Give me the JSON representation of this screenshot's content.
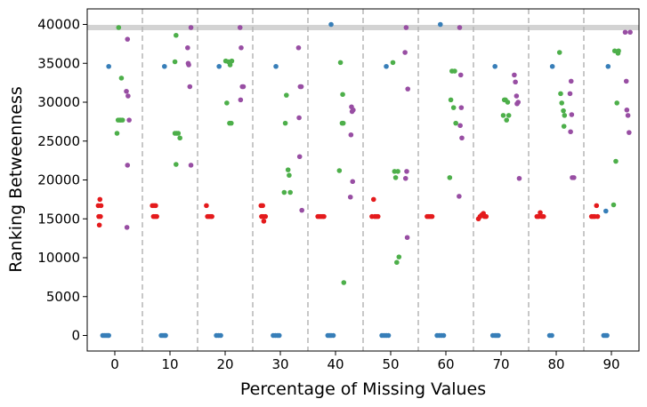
{
  "chart_data": {
    "type": "scatter",
    "title": "",
    "xlabel": "Percentage of Missing Values",
    "ylabel": "Ranking Betweenness",
    "xlim": [
      -5,
      95
    ],
    "ylim": [
      -2000,
      42000
    ],
    "xticks": [
      0,
      10,
      20,
      30,
      40,
      50,
      60,
      70,
      80,
      90
    ],
    "yticks": [
      0,
      5000,
      10000,
      15000,
      20000,
      25000,
      30000,
      35000,
      40000
    ],
    "xtick_labels": [
      "0",
      "10",
      "20",
      "30",
      "40",
      "50",
      "60",
      "70",
      "80",
      "90"
    ],
    "ytick_labels": [
      "0",
      "5000",
      "10000",
      "15000",
      "20000",
      "25000",
      "30000",
      "35000",
      "40000"
    ],
    "reference_line_y": 39600,
    "group_separators_x": [
      5,
      15,
      25,
      35,
      45,
      55,
      65,
      75,
      85
    ],
    "grid": false,
    "series": [
      {
        "name": "blue",
        "color": "#377eb8",
        "points": [
          [
            -2.2,
            0
          ],
          [
            -1.9,
            0
          ],
          [
            -1.6,
            0
          ],
          [
            -1.3,
            0
          ],
          [
            -1.1,
            0
          ],
          [
            -1.1,
            34600
          ],
          [
            8.4,
            0
          ],
          [
            8.7,
            0
          ],
          [
            9.0,
            0
          ],
          [
            9.2,
            0
          ],
          [
            9.0,
            34600
          ],
          [
            18.4,
            0
          ],
          [
            18.8,
            0
          ],
          [
            19.2,
            0
          ],
          [
            18.9,
            34600
          ],
          [
            28.7,
            0
          ],
          [
            29.1,
            0
          ],
          [
            29.5,
            0
          ],
          [
            29.8,
            0
          ],
          [
            29.2,
            34600
          ],
          [
            38.6,
            0
          ],
          [
            38.9,
            0
          ],
          [
            39.2,
            0
          ],
          [
            39.6,
            0
          ],
          [
            39.2,
            40000
          ],
          [
            48.4,
            0
          ],
          [
            48.8,
            0
          ],
          [
            49.2,
            0
          ],
          [
            49.6,
            0
          ],
          [
            49.2,
            34600
          ],
          [
            58.4,
            0
          ],
          [
            58.8,
            0
          ],
          [
            59.2,
            0
          ],
          [
            59.6,
            0
          ],
          [
            59.0,
            40000
          ],
          [
            68.5,
            0
          ],
          [
            68.9,
            0
          ],
          [
            69.2,
            0
          ],
          [
            69.5,
            0
          ],
          [
            68.9,
            34600
          ],
          [
            78.8,
            0
          ],
          [
            79.2,
            0
          ],
          [
            79.3,
            34600
          ],
          [
            88.6,
            0
          ],
          [
            88.9,
            0
          ],
          [
            89.2,
            0
          ],
          [
            89.4,
            34600
          ],
          [
            89.0,
            16000
          ]
        ]
      },
      {
        "name": "red",
        "color": "#e41a1c",
        "points": [
          [
            -3.0,
            16700
          ],
          [
            -2.7,
            17500
          ],
          [
            -2.9,
            15300
          ],
          [
            -2.6,
            15300
          ],
          [
            -2.8,
            14200
          ],
          [
            -2.5,
            16700
          ],
          [
            6.8,
            16700
          ],
          [
            7.1,
            16700
          ],
          [
            7.4,
            16700
          ],
          [
            7.0,
            15300
          ],
          [
            7.3,
            15300
          ],
          [
            7.6,
            15300
          ],
          [
            16.6,
            16700
          ],
          [
            16.8,
            15300
          ],
          [
            17.1,
            15300
          ],
          [
            17.4,
            15300
          ],
          [
            17.6,
            15300
          ],
          [
            26.5,
            16700
          ],
          [
            26.8,
            16700
          ],
          [
            26.6,
            15300
          ],
          [
            26.9,
            15300
          ],
          [
            27.3,
            15300
          ],
          [
            27.0,
            14700
          ],
          [
            36.8,
            15300
          ],
          [
            37.1,
            15300
          ],
          [
            37.4,
            15300
          ],
          [
            37.7,
            15300
          ],
          [
            37.9,
            15300
          ],
          [
            46.6,
            15300
          ],
          [
            46.9,
            17500
          ],
          [
            47.1,
            15300
          ],
          [
            47.4,
            15300
          ],
          [
            47.7,
            15300
          ],
          [
            56.6,
            15300
          ],
          [
            56.9,
            15300
          ],
          [
            57.2,
            15300
          ],
          [
            57.5,
            15300
          ],
          [
            65.9,
            15000
          ],
          [
            66.2,
            15300
          ],
          [
            66.5,
            15500
          ],
          [
            66.8,
            15700
          ],
          [
            67.0,
            15300
          ],
          [
            67.3,
            15300
          ],
          [
            76.5,
            15300
          ],
          [
            76.8,
            15300
          ],
          [
            77.1,
            15800
          ],
          [
            77.4,
            15300
          ],
          [
            77.7,
            15300
          ],
          [
            86.4,
            15300
          ],
          [
            86.7,
            15300
          ],
          [
            87.0,
            15300
          ],
          [
            87.3,
            16700
          ],
          [
            87.5,
            15300
          ]
        ]
      },
      {
        "name": "green",
        "color": "#4daf4a",
        "points": [
          [
            0.4,
            26000
          ],
          [
            0.6,
            27700
          ],
          [
            0.7,
            39600
          ],
          [
            0.9,
            27700
          ],
          [
            1.1,
            27700
          ],
          [
            1.2,
            33100
          ],
          [
            1.4,
            27700
          ],
          [
            10.9,
            35200
          ],
          [
            11.1,
            38600
          ],
          [
            11.2,
            26000
          ],
          [
            11.5,
            26000
          ],
          [
            11.8,
            25400
          ],
          [
            11.1,
            22000
          ],
          [
            10.9,
            26000
          ],
          [
            20.1,
            35300
          ],
          [
            20.3,
            29900
          ],
          [
            20.6,
            35200
          ],
          [
            20.8,
            27300
          ],
          [
            21.1,
            27300
          ],
          [
            21.2,
            35300
          ],
          [
            20.9,
            34800
          ],
          [
            30.7,
            18400
          ],
          [
            30.9,
            27300
          ],
          [
            31.1,
            30900
          ],
          [
            31.4,
            21300
          ],
          [
            31.6,
            20600
          ],
          [
            31.8,
            18400
          ],
          [
            40.7,
            21200
          ],
          [
            40.9,
            35100
          ],
          [
            41.2,
            27300
          ],
          [
            41.4,
            27300
          ],
          [
            41.3,
            31000
          ],
          [
            41.5,
            6800
          ],
          [
            50.4,
            35100
          ],
          [
            50.7,
            21100
          ],
          [
            50.9,
            20300
          ],
          [
            51.1,
            9400
          ],
          [
            51.3,
            21100
          ],
          [
            51.5,
            10100
          ],
          [
            60.7,
            20300
          ],
          [
            60.9,
            30300
          ],
          [
            61.1,
            34000
          ],
          [
            61.4,
            29300
          ],
          [
            61.6,
            34000
          ],
          [
            61.8,
            27300
          ],
          [
            70.4,
            28300
          ],
          [
            70.6,
            30300
          ],
          [
            70.8,
            30300
          ],
          [
            71.0,
            27700
          ],
          [
            71.2,
            30000
          ],
          [
            71.4,
            28300
          ],
          [
            80.6,
            36400
          ],
          [
            80.8,
            31100
          ],
          [
            81.0,
            29900
          ],
          [
            81.3,
            28900
          ],
          [
            81.4,
            26900
          ],
          [
            81.5,
            28300
          ],
          [
            90.4,
            16800
          ],
          [
            90.6,
            36600
          ],
          [
            90.8,
            22400
          ],
          [
            91.0,
            29900
          ],
          [
            91.2,
            36300
          ],
          [
            91.3,
            36600
          ]
        ]
      },
      {
        "name": "purple",
        "color": "#984ea3",
        "points": [
          [
            2.3,
            38100
          ],
          [
            2.1,
            31400
          ],
          [
            2.4,
            30800
          ],
          [
            2.3,
            21900
          ],
          [
            2.6,
            27700
          ],
          [
            2.2,
            13900
          ],
          [
            13.2,
            37000
          ],
          [
            13.4,
            34800
          ],
          [
            13.3,
            35000
          ],
          [
            13.6,
            32000
          ],
          [
            13.8,
            39600
          ],
          [
            13.8,
            21900
          ],
          [
            22.7,
            39600
          ],
          [
            22.9,
            37000
          ],
          [
            23.1,
            32000
          ],
          [
            22.8,
            30300
          ],
          [
            23.3,
            32000
          ],
          [
            33.3,
            37000
          ],
          [
            33.6,
            32000
          ],
          [
            33.4,
            28000
          ],
          [
            33.5,
            23000
          ],
          [
            33.8,
            32000
          ],
          [
            33.9,
            16100
          ],
          [
            42.9,
            29400
          ],
          [
            43.0,
            28800
          ],
          [
            42.8,
            25800
          ],
          [
            43.1,
            19800
          ],
          [
            42.7,
            17800
          ],
          [
            43.2,
            29000
          ],
          [
            52.6,
            36400
          ],
          [
            52.8,
            39600
          ],
          [
            53.1,
            31700
          ],
          [
            52.9,
            21100
          ],
          [
            52.7,
            20200
          ],
          [
            53.0,
            12600
          ],
          [
            62.5,
            39600
          ],
          [
            62.7,
            33500
          ],
          [
            62.8,
            29300
          ],
          [
            62.6,
            27000
          ],
          [
            62.9,
            25400
          ],
          [
            62.4,
            17900
          ],
          [
            72.4,
            33500
          ],
          [
            72.6,
            32600
          ],
          [
            72.8,
            30800
          ],
          [
            73.1,
            30000
          ],
          [
            73.3,
            20200
          ],
          [
            72.9,
            29800
          ],
          [
            82.5,
            31100
          ],
          [
            82.7,
            32700
          ],
          [
            82.8,
            28400
          ],
          [
            82.6,
            26200
          ],
          [
            82.9,
            20300
          ],
          [
            83.2,
            20300
          ],
          [
            92.5,
            39000
          ],
          [
            92.7,
            32700
          ],
          [
            92.8,
            29000
          ],
          [
            93.0,
            28300
          ],
          [
            93.2,
            26100
          ],
          [
            93.4,
            39000
          ]
        ]
      }
    ]
  }
}
